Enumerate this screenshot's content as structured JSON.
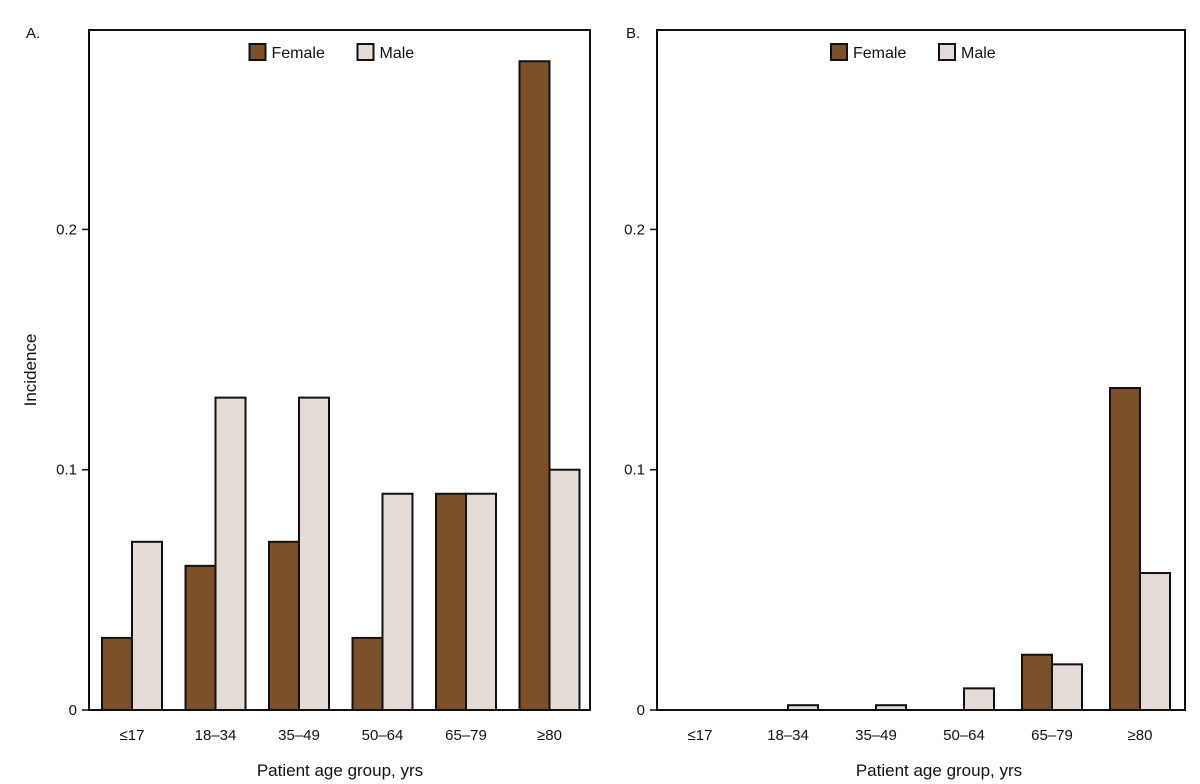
{
  "colors": {
    "female": "#7a4f2a",
    "male": "#e4dbd7",
    "stroke": "#111111"
  },
  "chart_data": [
    {
      "type": "bar",
      "panel_label": "A.",
      "categories": [
        "≤17",
        "18–34",
        "35–49",
        "50–64",
        "65–79",
        "≥80"
      ],
      "series": [
        {
          "name": "Female",
          "values": [
            0.03,
            0.06,
            0.07,
            0.03,
            0.09,
            0.27
          ]
        },
        {
          "name": "Male",
          "values": [
            0.07,
            0.13,
            0.13,
            0.09,
            0.09,
            0.1
          ]
        }
      ],
      "ylim": [
        0,
        0.283
      ],
      "yticks": [
        0,
        0.1,
        0.2
      ],
      "ytick_labels": [
        "0",
        "0.1",
        "0.2"
      ],
      "xlabel": "Patient age group, yrs",
      "ylabel": "Incidence",
      "legend": "top-center",
      "grid": false
    },
    {
      "type": "bar",
      "panel_label": "B.",
      "categories": [
        "≤17",
        "18–34",
        "35–49",
        "50–64",
        "65–79",
        "≥80"
      ],
      "series": [
        {
          "name": "Female",
          "values": [
            0,
            0,
            0,
            0,
            0.023,
            0.134
          ]
        },
        {
          "name": "Male",
          "values": [
            0,
            0.002,
            0.002,
            0.009,
            0.019,
            0.057
          ]
        }
      ],
      "ylim": [
        0,
        0.283
      ],
      "yticks": [
        0,
        0.1,
        0.2
      ],
      "ytick_labels": [
        "0",
        "0.1",
        "0.2"
      ],
      "xlabel": "Patient age group, yrs",
      "ylabel": "",
      "legend": "top-center",
      "grid": false
    }
  ]
}
